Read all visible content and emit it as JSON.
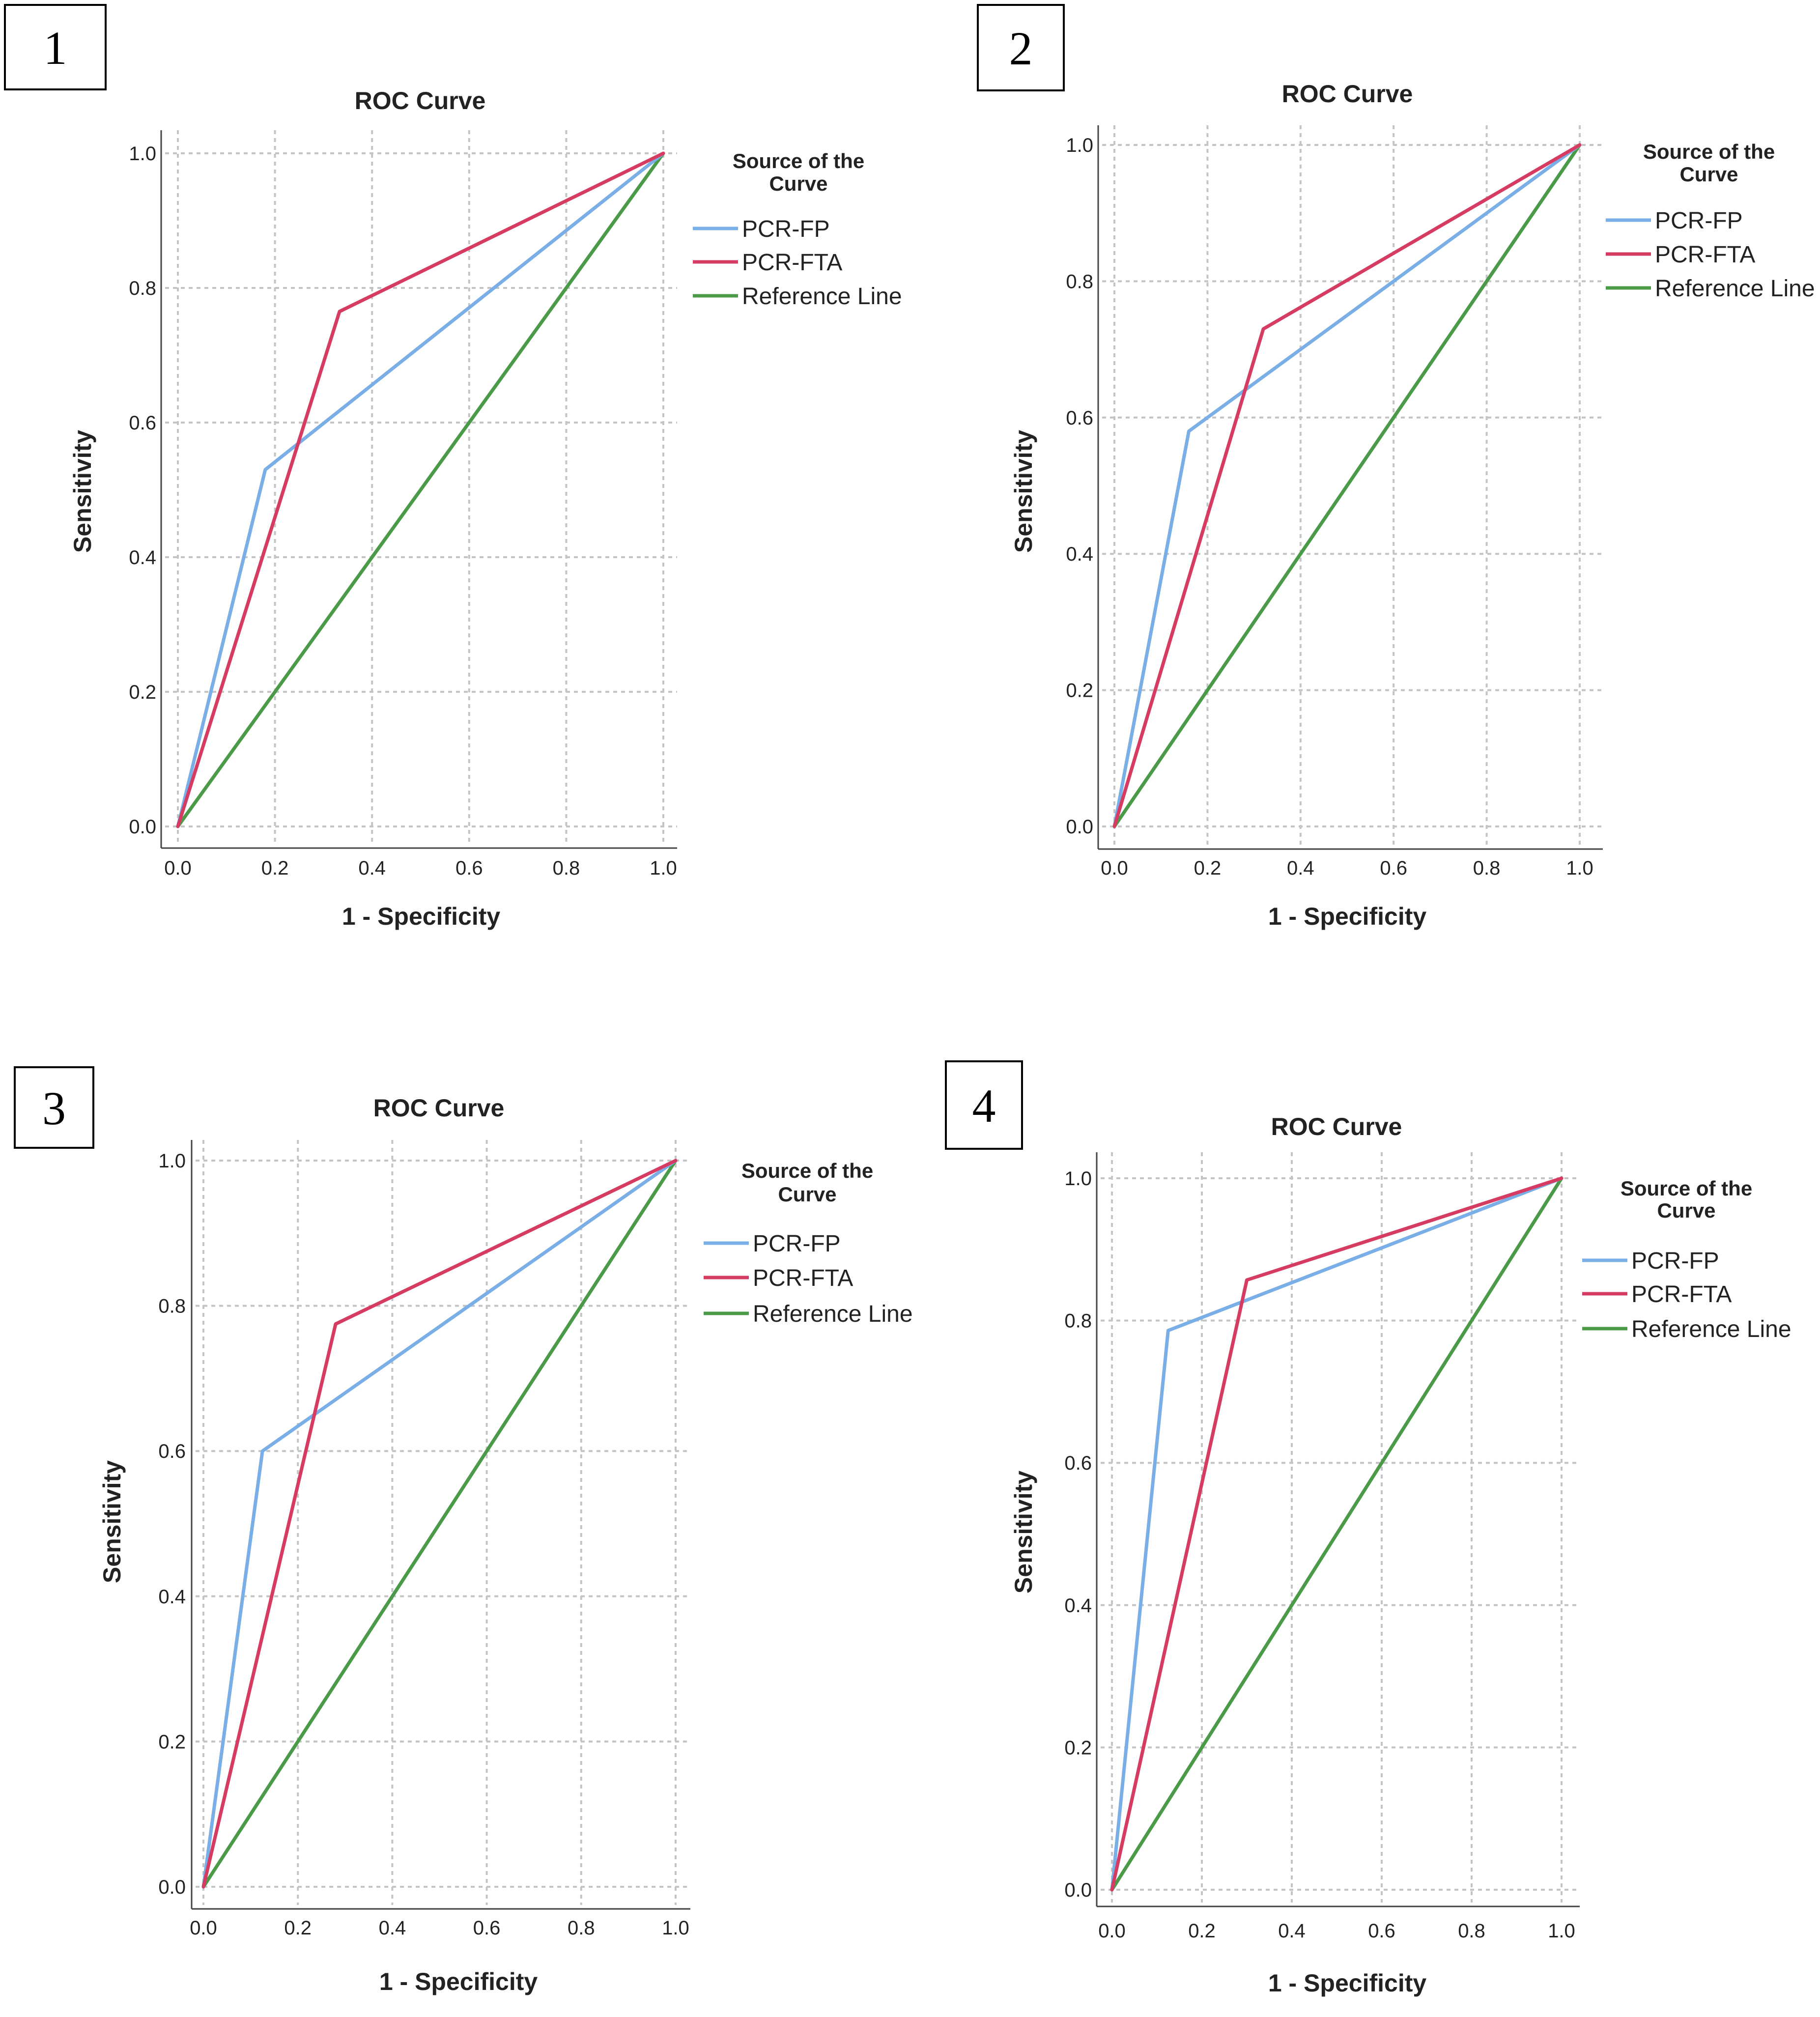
{
  "figure": {
    "legend_title_line1": "Source of the",
    "legend_title_line2": "Curve"
  },
  "chart_data": [
    {
      "panel": "1",
      "type": "line",
      "title": "ROC Curve",
      "xlabel": "1 - Specificity",
      "ylabel": "Sensitivity",
      "xlim": [
        0,
        1
      ],
      "ylim": [
        0,
        1
      ],
      "xticks": [
        "0.0",
        "0.2",
        "0.4",
        "0.6",
        "0.8",
        "1.0"
      ],
      "yticks": [
        "0.0",
        "0.2",
        "0.4",
        "0.6",
        "0.8",
        "1.0"
      ],
      "grid": true,
      "legend_position": "right",
      "series": [
        {
          "name": "PCR-FP",
          "color": "#7aaee6",
          "x": [
            0,
            0.18,
            1
          ],
          "y": [
            0,
            0.53,
            1
          ]
        },
        {
          "name": "PCR-FTA",
          "color": "#d63b62",
          "x": [
            0,
            0.333,
            1
          ],
          "y": [
            0,
            0.765,
            1
          ]
        },
        {
          "name": "Reference Line",
          "color": "#4a9a48",
          "x": [
            0,
            1
          ],
          "y": [
            0,
            1
          ]
        }
      ]
    },
    {
      "panel": "2",
      "type": "line",
      "title": "ROC Curve",
      "xlabel": "1 - Specificity",
      "ylabel": "Sensitivity",
      "xlim": [
        0,
        1
      ],
      "ylim": [
        0,
        1
      ],
      "xticks": [
        "0.0",
        "0.2",
        "0.4",
        "0.6",
        "0.8",
        "1.0"
      ],
      "yticks": [
        "0.0",
        "0.2",
        "0.4",
        "0.6",
        "0.8",
        "1.0"
      ],
      "grid": true,
      "legend_position": "right",
      "series": [
        {
          "name": "PCR-FP",
          "color": "#7aaee6",
          "x": [
            0,
            0.16,
            1
          ],
          "y": [
            0,
            0.58,
            1
          ]
        },
        {
          "name": "PCR-FTA",
          "color": "#d63b62",
          "x": [
            0,
            0.32,
            1
          ],
          "y": [
            0,
            0.73,
            1
          ]
        },
        {
          "name": "Reference Line",
          "color": "#4a9a48",
          "x": [
            0,
            1
          ],
          "y": [
            0,
            1
          ]
        }
      ]
    },
    {
      "panel": "3",
      "type": "line",
      "title": "ROC Curve",
      "xlabel": "1 - Specificity",
      "ylabel": "Sensitivity",
      "xlim": [
        0,
        1
      ],
      "ylim": [
        0,
        1
      ],
      "xticks": [
        "0.0",
        "0.2",
        "0.4",
        "0.6",
        "0.8",
        "1.0"
      ],
      "yticks": [
        "0.0",
        "0.2",
        "0.4",
        "0.6",
        "0.8",
        "1.0"
      ],
      "grid": true,
      "legend_position": "right",
      "series": [
        {
          "name": "PCR-FP",
          "color": "#7aaee6",
          "x": [
            0,
            0.125,
            1
          ],
          "y": [
            0,
            0.6,
            1
          ]
        },
        {
          "name": "PCR-FTA",
          "color": "#d63b62",
          "x": [
            0,
            0.28,
            1
          ],
          "y": [
            0,
            0.775,
            1
          ]
        },
        {
          "name": "Reference Line",
          "color": "#4a9a48",
          "x": [
            0,
            1
          ],
          "y": [
            0,
            1
          ]
        }
      ]
    },
    {
      "panel": "4",
      "type": "line",
      "title": "ROC Curve",
      "xlabel": "1 - Specificity",
      "ylabel": "Sensitivity",
      "xlim": [
        0,
        1
      ],
      "ylim": [
        0,
        1
      ],
      "xticks": [
        "0.0",
        "0.2",
        "0.4",
        "0.6",
        "0.8",
        "1.0"
      ],
      "yticks": [
        "0.0",
        "0.2",
        "0.4",
        "0.6",
        "0.8",
        "1.0"
      ],
      "grid": true,
      "legend_position": "right",
      "series": [
        {
          "name": "PCR-FP",
          "color": "#7aaee6",
          "x": [
            0,
            0.125,
            1
          ],
          "y": [
            0,
            0.786,
            1
          ]
        },
        {
          "name": "PCR-FTA",
          "color": "#d63b62",
          "x": [
            0,
            0.3,
            1
          ],
          "y": [
            0,
            0.857,
            1
          ]
        },
        {
          "name": "Reference Line",
          "color": "#4a9a48",
          "x": [
            0,
            1
          ],
          "y": [
            0,
            1
          ]
        }
      ]
    }
  ]
}
